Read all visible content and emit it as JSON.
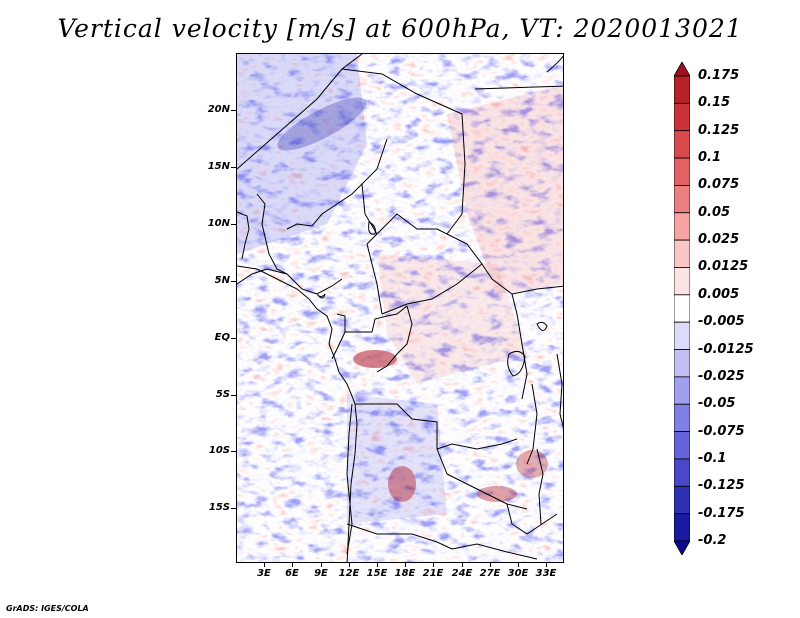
{
  "title": "Vertical velocity [m/s] at 600hPa, VT: 2020013021",
  "footer": "GrADS: IGES/COLA",
  "map": {
    "field": "vertical velocity",
    "level": "600hPa",
    "units": "m/s",
    "lat_labels": [
      "20N",
      "15N",
      "10N",
      "5N",
      "EQ",
      "5S",
      "10S",
      "15S"
    ],
    "lon_labels": [
      "3E",
      "6E",
      "9E",
      "12E",
      "15E",
      "18E",
      "21E",
      "24E",
      "27E",
      "30E",
      "33E"
    ]
  },
  "colorbar": {
    "levels": [
      "0.175",
      "0.15",
      "0.125",
      "0.1",
      "0.075",
      "0.05",
      "0.025",
      "0.0125",
      "0.005",
      "-0.005",
      "-0.0125",
      "-0.025",
      "-0.05",
      "-0.075",
      "-0.1",
      "-0.125",
      "-0.175",
      "-0.2"
    ],
    "colors": [
      "#a01020",
      "#b52228",
      "#c83238",
      "#d84a4e",
      "#e26264",
      "#ec8080",
      "#f5a3a3",
      "#fbc6c6",
      "#fde4e4",
      "#ffffff",
      "#dcdcfa",
      "#c0c0f4",
      "#a0a0ee",
      "#8080e4",
      "#6464d8",
      "#4848c8",
      "#3030b4",
      "#1a1aa0",
      "#0c0c8c"
    ]
  }
}
